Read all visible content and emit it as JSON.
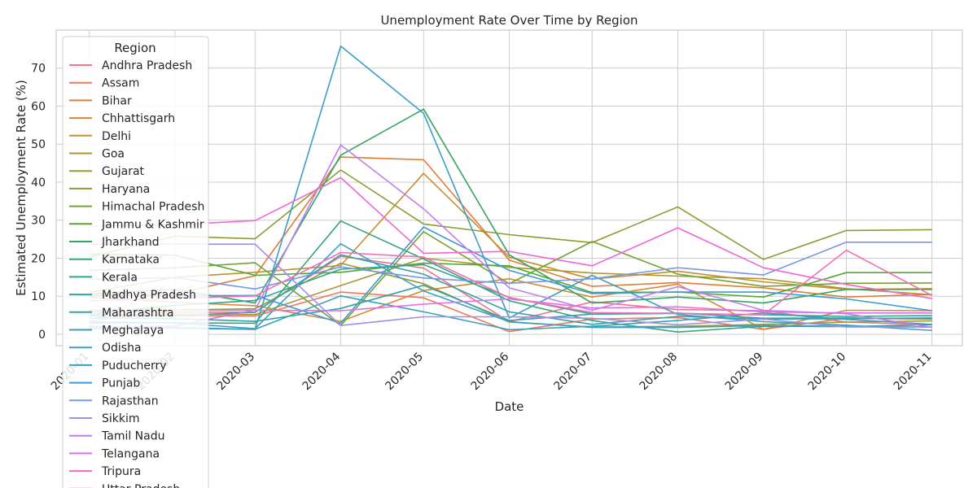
{
  "chart_data": {
    "type": "line",
    "title": "Unemployment Rate Over Time by Region",
    "xlabel": "Date",
    "ylabel": "Estimated Unemployment Rate (%)",
    "x": [
      "2020-01",
      "2020-02",
      "2020-03",
      "2020-04",
      "2020-05",
      "2020-06",
      "2020-07",
      "2020-08",
      "2020-09",
      "2020-10",
      "2020-11"
    ],
    "xlim": [
      "2019-12-20",
      "2020-11-12"
    ],
    "ylim": [
      -3,
      80
    ],
    "yticks": [
      0,
      10,
      20,
      30,
      40,
      50,
      60,
      70
    ],
    "grid": true,
    "legend": {
      "title": "Region",
      "placement": "upper-left"
    },
    "series": [
      {
        "name": "Andhra Pradesh",
        "color": "#f77189",
        "values": [
          6,
          5.8,
          5.8,
          20.5,
          17.4,
          3.3,
          8.5,
          6.5,
          6.2,
          3.2,
          2.5
        ]
      },
      {
        "name": "Assam",
        "color": "#f4765e",
        "values": [
          4.8,
          4.8,
          4.8,
          11.1,
          9.6,
          0.7,
          4,
          4.4,
          1.3,
          4.2,
          4
        ]
      },
      {
        "name": "Bihar",
        "color": "#e27c36",
        "values": [
          10.5,
          10.6,
          15.4,
          46.6,
          45.9,
          19.5,
          12.6,
          13.6,
          12.2,
          9.8,
          10.5
        ]
      },
      {
        "name": "Chhattisgarh",
        "color": "#db8832",
        "values": [
          9.7,
          8.4,
          7.5,
          3.4,
          11.5,
          14.6,
          9.8,
          13.2,
          1.3,
          6.3,
          6.2
        ]
      },
      {
        "name": "Delhi",
        "color": "#c2902f",
        "values": [
          11,
          15,
          16.3,
          18.1,
          42.3,
          20.3,
          14.5,
          16.6,
          13.8,
          11.8,
          12
        ]
      },
      {
        "name": "Goa",
        "color": "#ae9531",
        "values": [
          5.2,
          5.2,
          5.2,
          12.8,
          20,
          17.6,
          16.1,
          15.3,
          14.6,
          12,
          10.4
        ]
      },
      {
        "name": "Gujarat",
        "color": "#9d9931",
        "values": [
          6.3,
          6.4,
          6.7,
          18.7,
          13.3,
          3.2,
          1.9,
          2.1,
          2.6,
          3.2,
          3.5
        ]
      },
      {
        "name": "Haryana",
        "color": "#8e9d31",
        "values": [
          20.3,
          25.8,
          25.1,
          43.2,
          29,
          26.2,
          24.1,
          33.5,
          19.7,
          27.3,
          27.5
        ]
      },
      {
        "name": "Himachal Pradesh",
        "color": "#74a331",
        "values": [
          16.8,
          17.5,
          18.8,
          2.3,
          27,
          13.3,
          24.4,
          15.8,
          12.6,
          13.4,
          13.5
        ]
      },
      {
        "name": "Jammu & Kashmir",
        "color": "#53a831",
        "values": [
          21.1,
          20.8,
          15.5,
          16.3,
          18.7,
          18,
          11,
          11.1,
          9.8,
          16.2,
          16.2
        ]
      },
      {
        "name": "Jharkhand",
        "color": "#32a65e",
        "values": [
          10.6,
          11.8,
          8.2,
          47.1,
          59.2,
          20.9,
          8.2,
          9.8,
          8.2,
          11.8,
          11.8
        ]
      },
      {
        "name": "Karnataka",
        "color": "#34a57e",
        "values": [
          2.9,
          3,
          2.9,
          29.8,
          19.8,
          8.8,
          3.6,
          0.6,
          2.1,
          2,
          2.5
        ]
      },
      {
        "name": "Kerala",
        "color": "#35a391",
        "values": [
          5.3,
          7.6,
          8.9,
          17.1,
          18.3,
          9.7,
          5.3,
          5.5,
          5.1,
          4.7,
          4.9
        ]
      },
      {
        "name": "Madhya Pradesh",
        "color": "#36a29f",
        "values": [
          4.3,
          4.1,
          3.4,
          6.8,
          12.9,
          3.6,
          5.3,
          5.6,
          4.2,
          4.3,
          4.1
        ]
      },
      {
        "name": "Maharashtra",
        "color": "#37a1ac",
        "values": [
          4.8,
          4.9,
          5.8,
          20.9,
          15.8,
          5.9,
          2.6,
          4.7,
          4,
          4.1,
          4.3
        ]
      },
      {
        "name": "Meghalaya",
        "color": "#38a0b9",
        "values": [
          2.1,
          1.8,
          1.3,
          10.1,
          5.9,
          1.2,
          2.1,
          3.6,
          5.6,
          3.9,
          2.6
        ]
      },
      {
        "name": "Odisha",
        "color": "#3a9fc9",
        "values": [
          3.3,
          3,
          1.5,
          23.8,
          11.4,
          3.3,
          1.8,
          1.8,
          2.3,
          2.1,
          1.9
        ]
      },
      {
        "name": "Puducherry",
        "color": "#3a9fc9",
        "values": [
          1.5,
          1.6,
          1.3,
          75.8,
          58.1,
          4.3,
          15.5,
          5.2,
          3.3,
          2.4,
          1
        ]
      },
      {
        "name": "Punjab",
        "color": "#3d9ad9",
        "values": [
          10.1,
          10.1,
          10.2,
          2.9,
          28.2,
          16.8,
          10.7,
          11.1,
          11.1,
          9.3,
          6.2
        ]
      },
      {
        "name": "Rajasthan",
        "color": "#7797e8",
        "values": [
          14.5,
          14.9,
          11.9,
          17.7,
          14.8,
          13.4,
          14.6,
          17.5,
          15.6,
          24.2,
          24.2
        ]
      },
      {
        "name": "Sikkim",
        "color": "#a08fec",
        "values": [
          23.7,
          23.7,
          23.7,
          2.3,
          4.6,
          4.6,
          4.2,
          2.5,
          4,
          1.9,
          1.9
        ]
      },
      {
        "name": "Tamil Nadu",
        "color": "#c17eef",
        "values": [
          1.8,
          2.2,
          6.4,
          49.8,
          33,
          12.2,
          6.3,
          12.5,
          6.3,
          5.4,
          1.8
        ]
      },
      {
        "name": "Telangana",
        "color": "#e06cf0",
        "values": [
          3.5,
          6.3,
          6.3,
          6.2,
          7.9,
          9.3,
          6.9,
          7.2,
          5.9,
          5.6,
          5.6
        ]
      },
      {
        "name": "Tripura",
        "color": "#f265d7",
        "values": [
          28.4,
          28.8,
          29.9,
          41.2,
          21.3,
          21.8,
          18,
          28,
          17.5,
          13.1,
          9.4
        ]
      },
      {
        "name": "Uttar Pradesh",
        "color": "#f56eb8",
        "values": [
          8.8,
          9.4,
          10.1,
          21.5,
          20.3,
          9.6,
          5.7,
          5.5,
          5.1,
          22.1,
          10.2
        ]
      }
    ]
  }
}
